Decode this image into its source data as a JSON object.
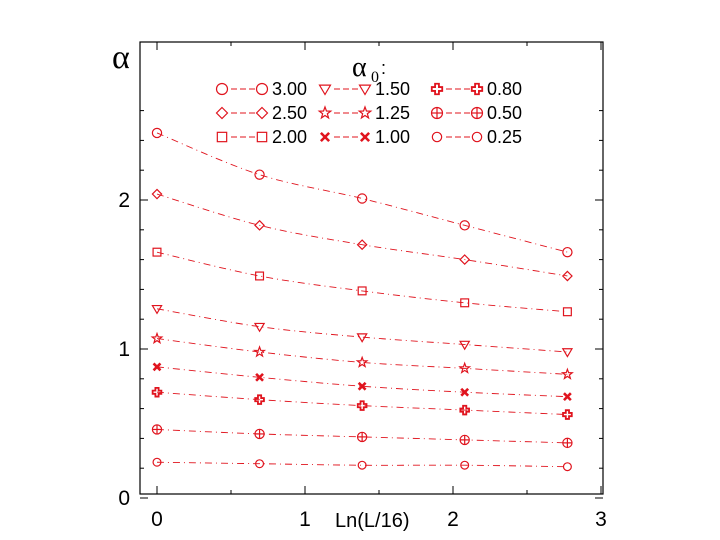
{
  "chart_data": {
    "type": "scatter",
    "title": "",
    "xlabel": "Ln(L/16)",
    "ylabel": "α",
    "xlim": [
      0,
      3
    ],
    "ylim": [
      0,
      2.75
    ],
    "x_ticks": [
      "0",
      "1",
      "2",
      "3"
    ],
    "y_ticks": [
      "0",
      "1",
      "2"
    ],
    "grid": false,
    "legend_title": "α",
    "legend_title_sub": "0",
    "legend_title_suffix": ":",
    "legend_placement": "top",
    "color": "#e0141e",
    "x": [
      0,
      0.693,
      1.386,
      2.079,
      2.773
    ],
    "series": [
      {
        "name": "3.00",
        "marker": "circle",
        "values": [
          2.45,
          2.17,
          2.01,
          1.83,
          1.65
        ]
      },
      {
        "name": "2.50",
        "marker": "diamond",
        "values": [
          2.04,
          1.83,
          1.7,
          1.6,
          1.49
        ]
      },
      {
        "name": "2.00",
        "marker": "square",
        "values": [
          1.65,
          1.49,
          1.39,
          1.31,
          1.25
        ]
      },
      {
        "name": "1.50",
        "marker": "triangle-down",
        "values": [
          1.27,
          1.15,
          1.08,
          1.03,
          0.98
        ]
      },
      {
        "name": "1.25",
        "marker": "star",
        "values": [
          1.07,
          0.98,
          0.91,
          0.87,
          0.83
        ]
      },
      {
        "name": "1.00",
        "marker": "x",
        "values": [
          0.88,
          0.81,
          0.75,
          0.71,
          0.68
        ]
      },
      {
        "name": "0.80",
        "marker": "cross",
        "values": [
          0.71,
          0.66,
          0.62,
          0.59,
          0.56
        ]
      },
      {
        "name": "0.50",
        "marker": "circle-plus",
        "values": [
          0.46,
          0.43,
          0.41,
          0.39,
          0.37
        ]
      },
      {
        "name": "0.25",
        "marker": "circle-small",
        "values": [
          0.24,
          0.23,
          0.22,
          0.22,
          0.21
        ]
      }
    ]
  }
}
